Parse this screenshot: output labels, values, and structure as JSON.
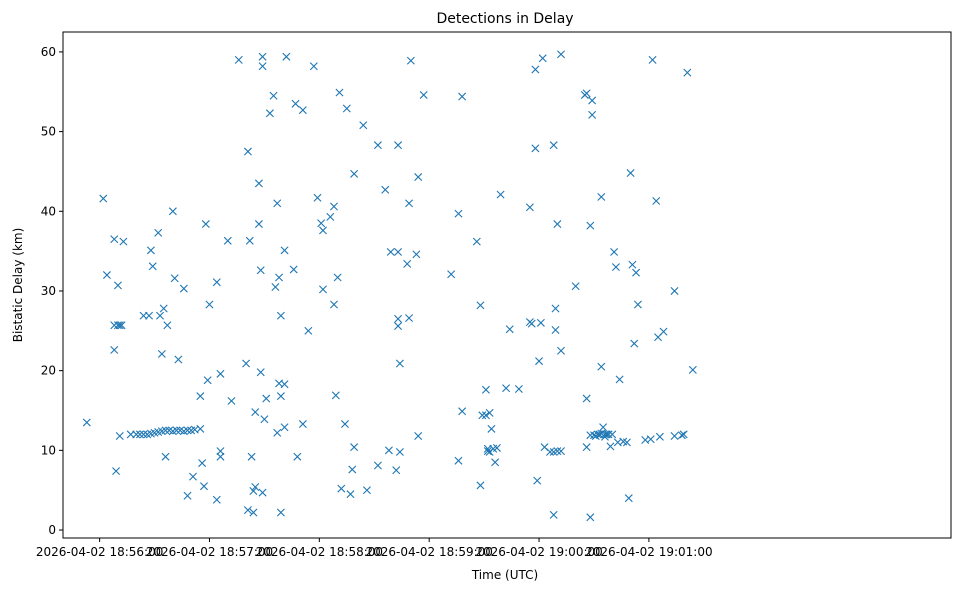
{
  "chart_data": {
    "type": "scatter",
    "title": "Detections in Delay",
    "xlabel": "Time (UTC)",
    "ylabel": "Bistatic Delay (km)",
    "marker": "x",
    "color": "#1f77b4",
    "grid": false,
    "xlim": [
      -20,
      465
    ],
    "ylim": [
      -1,
      62.5
    ],
    "xticks": [
      0,
      60,
      120,
      180,
      240,
      300
    ],
    "xtick_labels": [
      "2026-04-02 18:56:00",
      "2026-04-02 18:57:00",
      "2026-04-02 18:58:00",
      "2026-04-02 18:59:00",
      "2026-04-02 19:00:00",
      "2026-04-02 19:01:00"
    ],
    "yticks": [
      0,
      10,
      20,
      30,
      40,
      50,
      60
    ],
    "ytick_labels": [
      "0",
      "10",
      "20",
      "30",
      "40",
      "50",
      "60"
    ],
    "points": [
      [
        -7,
        13.5
      ],
      [
        2,
        41.6
      ],
      [
        4,
        32
      ],
      [
        8,
        36.5
      ],
      [
        8,
        22.6
      ],
      [
        9,
        7.4
      ],
      [
        10,
        30.7
      ],
      [
        8,
        25.7
      ],
      [
        10,
        25.7
      ],
      [
        11,
        25.7
      ],
      [
        12,
        25.7
      ],
      [
        11,
        11.8
      ],
      [
        13,
        36.2
      ],
      [
        17,
        12
      ],
      [
        20,
        12
      ],
      [
        22,
        12
      ],
      [
        24,
        12
      ],
      [
        26,
        12
      ],
      [
        28,
        12.1
      ],
      [
        30,
        12.2
      ],
      [
        32,
        12.3
      ],
      [
        34,
        12.4
      ],
      [
        36,
        12.5
      ],
      [
        38,
        12.5
      ],
      [
        40,
        12.4
      ],
      [
        42,
        12.5
      ],
      [
        44,
        12.5
      ],
      [
        46,
        12.4
      ],
      [
        48,
        12.5
      ],
      [
        50,
        12.5
      ],
      [
        52,
        12.6
      ],
      [
        55,
        12.7
      ],
      [
        24,
        26.9
      ],
      [
        27,
        26.9
      ],
      [
        28,
        35.1
      ],
      [
        29,
        33.1
      ],
      [
        32,
        37.3
      ],
      [
        33,
        26.9
      ],
      [
        34,
        22.1
      ],
      [
        35,
        27.8
      ],
      [
        36,
        9.2
      ],
      [
        37,
        25.7
      ],
      [
        40,
        40
      ],
      [
        41,
        31.6
      ],
      [
        43,
        21.4
      ],
      [
        46,
        30.3
      ],
      [
        48,
        4.3
      ],
      [
        51,
        6.7
      ],
      [
        55,
        16.8
      ],
      [
        57,
        5.5
      ],
      [
        56,
        8.4
      ],
      [
        58,
        38.4
      ],
      [
        60,
        28.3
      ],
      [
        59,
        18.8
      ],
      [
        64,
        3.8
      ],
      [
        64,
        31.1
      ],
      [
        66,
        19.6
      ],
      [
        66,
        9.2
      ],
      [
        66,
        9.9
      ],
      [
        70,
        36.3
      ],
      [
        72,
        16.2
      ],
      [
        76,
        59
      ],
      [
        80,
        20.9
      ],
      [
        81,
        47.5
      ],
      [
        81,
        2.5
      ],
      [
        82,
        36.3
      ],
      [
        83,
        9.2
      ],
      [
        84,
        2.2
      ],
      [
        84,
        4.9
      ],
      [
        85,
        5.4
      ],
      [
        85,
        14.8
      ],
      [
        87,
        43.5
      ],
      [
        87,
        38.4
      ],
      [
        88,
        32.6
      ],
      [
        88,
        19.8
      ],
      [
        89,
        4.7
      ],
      [
        89,
        58.2
      ],
      [
        89,
        59.4
      ],
      [
        90,
        13.9
      ],
      [
        91,
        16.5
      ],
      [
        93,
        52.3
      ],
      [
        95,
        54.5
      ],
      [
        96,
        30.5
      ],
      [
        97,
        41
      ],
      [
        97,
        12.2
      ],
      [
        98,
        18.4
      ],
      [
        98,
        31.7
      ],
      [
        99,
        26.9
      ],
      [
        99,
        16.8
      ],
      [
        99,
        2.2
      ],
      [
        101,
        35.1
      ],
      [
        101,
        18.3
      ],
      [
        101,
        12.9
      ],
      [
        102,
        59.4
      ],
      [
        106,
        32.7
      ],
      [
        107,
        53.5
      ],
      [
        108,
        9.2
      ],
      [
        111,
        52.7
      ],
      [
        111,
        13.3
      ],
      [
        114,
        25
      ],
      [
        117,
        58.2
      ],
      [
        119,
        41.7
      ],
      [
        121,
        38.5
      ],
      [
        122,
        37.6
      ],
      [
        122,
        30.2
      ],
      [
        126,
        39.3
      ],
      [
        128,
        40.6
      ],
      [
        128,
        28.3
      ],
      [
        129,
        16.9
      ],
      [
        130,
        31.7
      ],
      [
        131,
        54.9
      ],
      [
        132,
        5.2
      ],
      [
        134,
        13.3
      ],
      [
        135,
        52.9
      ],
      [
        137,
        4.5
      ],
      [
        138,
        7.6
      ],
      [
        139,
        10.4
      ],
      [
        139,
        44.7
      ],
      [
        144,
        50.8
      ],
      [
        146,
        5
      ],
      [
        152,
        48.3
      ],
      [
        152,
        8.1
      ],
      [
        156,
        42.7
      ],
      [
        158,
        10
      ],
      [
        159,
        34.9
      ],
      [
        162,
        7.5
      ],
      [
        163,
        48.3
      ],
      [
        163,
        34.9
      ],
      [
        163,
        26.5
      ],
      [
        163,
        25.6
      ],
      [
        164,
        20.9
      ],
      [
        164,
        9.8
      ],
      [
        168,
        33.4
      ],
      [
        169,
        41
      ],
      [
        169,
        26.6
      ],
      [
        170,
        58.9
      ],
      [
        173,
        34.6
      ],
      [
        174,
        44.3
      ],
      [
        174,
        11.8
      ],
      [
        177,
        54.6
      ],
      [
        192,
        32.1
      ],
      [
        196,
        39.7
      ],
      [
        196,
        8.7
      ],
      [
        198,
        54.4
      ],
      [
        198,
        14.9
      ],
      [
        206,
        36.2
      ],
      [
        208,
        5.6
      ],
      [
        208,
        28.2
      ],
      [
        209,
        14.4
      ],
      [
        211,
        14.4
      ],
      [
        211,
        17.6
      ],
      [
        212,
        9.9
      ],
      [
        212,
        10.2
      ],
      [
        213,
        14.7
      ],
      [
        213,
        9.8
      ],
      [
        214,
        12.7
      ],
      [
        215,
        10.2
      ],
      [
        216,
        8.5
      ],
      [
        217,
        10.3
      ],
      [
        219,
        42.1
      ],
      [
        222,
        17.8
      ],
      [
        224,
        25.2
      ],
      [
        229,
        17.7
      ],
      [
        235,
        40.5
      ],
      [
        235,
        26.1
      ],
      [
        236,
        25.9
      ],
      [
        238,
        57.8
      ],
      [
        238,
        47.9
      ],
      [
        239,
        6.2
      ],
      [
        240,
        21.2
      ],
      [
        241,
        26
      ],
      [
        242,
        59.2
      ],
      [
        243,
        10.4
      ],
      [
        246,
        9.8
      ],
      [
        248,
        48.3
      ],
      [
        248,
        1.9
      ],
      [
        248,
        9.8
      ],
      [
        249,
        27.8
      ],
      [
        249,
        25.1
      ],
      [
        250,
        9.9
      ],
      [
        250,
        38.4
      ],
      [
        252,
        9.9
      ],
      [
        252,
        22.5
      ],
      [
        252,
        59.7
      ],
      [
        260,
        30.6
      ],
      [
        265,
        54.6
      ],
      [
        266,
        54.8
      ],
      [
        266,
        10.4
      ],
      [
        266,
        16.5
      ],
      [
        268,
        38.2
      ],
      [
        268,
        11.9
      ],
      [
        268,
        1.6
      ],
      [
        269,
        53.9
      ],
      [
        269,
        52.1
      ],
      [
        270,
        11.9
      ],
      [
        271,
        11.8
      ],
      [
        272,
        12
      ],
      [
        273,
        12
      ],
      [
        274,
        12.1
      ],
      [
        274,
        20.5
      ],
      [
        274,
        41.8
      ],
      [
        275,
        12.9
      ],
      [
        276,
        12
      ],
      [
        276,
        11.7
      ],
      [
        277,
        12
      ],
      [
        278,
        12
      ],
      [
        279,
        10.5
      ],
      [
        280,
        12
      ],
      [
        281,
        34.9
      ],
      [
        282,
        33
      ],
      [
        283,
        11
      ],
      [
        284,
        18.9
      ],
      [
        286,
        11.1
      ],
      [
        288,
        11
      ],
      [
        289,
        4
      ],
      [
        290,
        44.8
      ],
      [
        291,
        33.3
      ],
      [
        292,
        23.4
      ],
      [
        293,
        32.3
      ],
      [
        294,
        28.3
      ],
      [
        298,
        11.3
      ],
      [
        301,
        11.4
      ],
      [
        302,
        59
      ],
      [
        304,
        41.3
      ],
      [
        305,
        24.2
      ],
      [
        306,
        11.7
      ],
      [
        308,
        24.9
      ],
      [
        314,
        30
      ],
      [
        314,
        11.8
      ],
      [
        318,
        11.9
      ],
      [
        319,
        12
      ],
      [
        321,
        57.4
      ],
      [
        324,
        20.1
      ]
    ]
  }
}
